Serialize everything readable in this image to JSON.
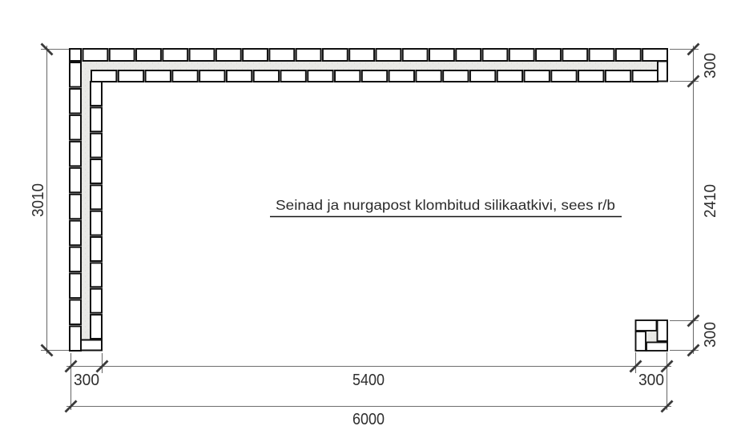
{
  "annotation": {
    "label": "Seinad ja nurgapost klombitud silikaatkivi, sees r/b"
  },
  "dimensions": {
    "left_total": "3010",
    "right_top": "300",
    "right_middle": "2410",
    "right_bottom": "300",
    "bottom_left": "300",
    "bottom_middle": "5400",
    "bottom_right": "300",
    "bottom_total": "6000"
  },
  "colors": {
    "brick_outline": "#101010",
    "brick_fill": "#ffffff",
    "core_fill": "#e9e9e6",
    "core_speck": "#d3d3cf",
    "dim_line": "#6e6e6e",
    "tick": "#3a3a3a",
    "text": "#2e2e2e",
    "background": "#ffffff"
  }
}
